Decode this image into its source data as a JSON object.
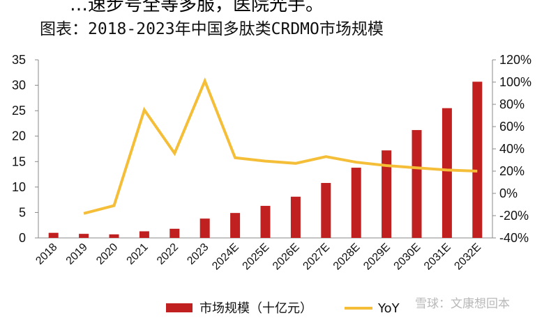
{
  "header": {
    "fragment": "…速步号全等多服，医院光手。",
    "title": "图表：2018-2023年中国多肽类CRDMO市场规模"
  },
  "watermark": "雪球：文康想回本",
  "colors": {
    "bar": "#C0201F",
    "line": "#F5BE38"
  },
  "chart_data": {
    "type": "bar",
    "categories": [
      "2018",
      "2019",
      "2020",
      "2021",
      "2022",
      "2023",
      "2024E",
      "2025E",
      "2026E",
      "2027E",
      "2028E",
      "2029E",
      "2030E",
      "2031E",
      "2032E"
    ],
    "series": [
      {
        "name": "市场规模（十亿元）",
        "type": "bar",
        "axis": "left",
        "values": [
          1.0,
          0.8,
          0.7,
          1.3,
          1.8,
          3.8,
          4.9,
          6.3,
          8.1,
          10.8,
          13.8,
          17.2,
          21.2,
          25.5,
          30.7
        ]
      },
      {
        "name": "YoY",
        "type": "line",
        "axis": "right",
        "values": [
          null,
          -18,
          -11,
          75,
          36,
          101,
          32,
          29,
          27,
          33,
          28,
          25,
          23,
          21,
          20
        ]
      }
    ],
    "y_left": {
      "min": 0,
      "max": 35,
      "ticks": [
        0,
        5,
        10,
        15,
        20,
        25,
        30,
        35
      ]
    },
    "y_right": {
      "min": -40,
      "max": 120,
      "ticks": [
        "-40%",
        "-20%",
        "0%",
        "20%",
        "40%",
        "60%",
        "80%",
        "100%",
        "120%"
      ]
    },
    "legend_position": "bottom",
    "grid": false
  }
}
